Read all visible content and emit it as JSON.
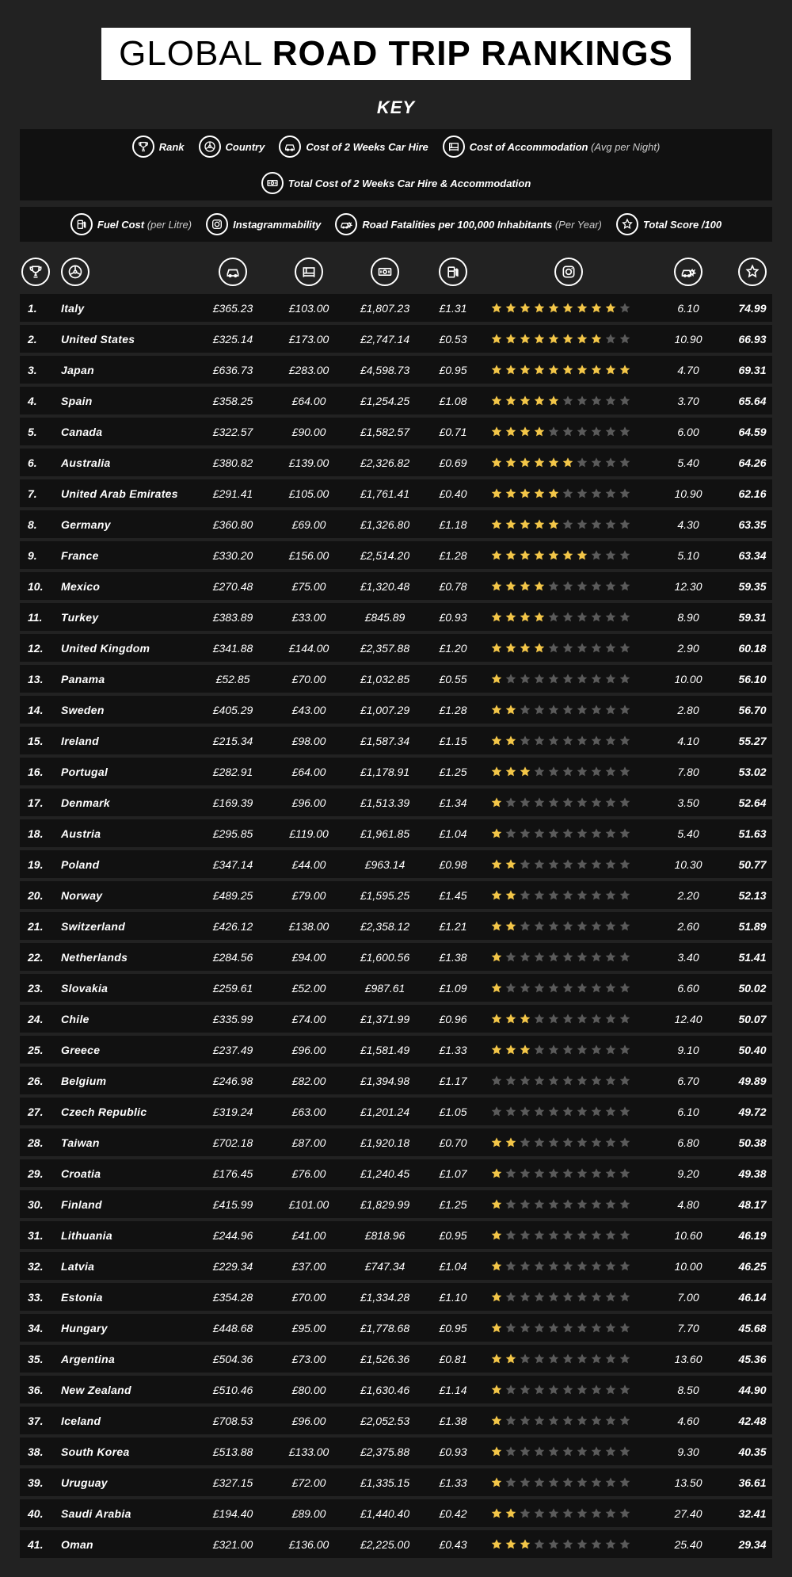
{
  "title": {
    "light": "GLOBAL ",
    "heavy": "ROAD TRIP RANKINGS"
  },
  "keyLabel": "KEY",
  "colors": {
    "gold": "#f3c648",
    "grey": "#5a5a5a",
    "rowBg": "#111111",
    "pageBg": "#222222"
  },
  "maxStars": 10,
  "legend": {
    "row1": [
      {
        "icon": "trophy",
        "label": "Rank",
        "sub": ""
      },
      {
        "icon": "wheel",
        "label": "Country",
        "sub": ""
      },
      {
        "icon": "car",
        "label": "Cost of 2 Weeks Car Hire",
        "sub": ""
      },
      {
        "icon": "bed",
        "label": "Cost of Accommodation",
        "sub": "(Avg per Night)"
      },
      {
        "icon": "money",
        "label": "Total Cost of 2 Weeks Car Hire & Accommodation",
        "sub": ""
      }
    ],
    "row2": [
      {
        "icon": "fuel",
        "label": "Fuel Cost",
        "sub": "(per Litre)"
      },
      {
        "icon": "insta",
        "label": "Instagrammability",
        "sub": ""
      },
      {
        "icon": "crash",
        "label": "Road Fatalities per 100,000 Inhabitants",
        "sub": "(Per Year)"
      },
      {
        "icon": "star",
        "label": "Total Score /100",
        "sub": ""
      }
    ]
  },
  "headers": [
    "trophy",
    "wheel",
    "car",
    "bed",
    "money",
    "fuel",
    "insta",
    "crash",
    "star"
  ],
  "rows": [
    {
      "rank": "1.",
      "country": "Italy",
      "hire": "£365.23",
      "accom": "£103.00",
      "total": "£1,807.23",
      "fuel": "£1.31",
      "stars": 9,
      "fatal": "6.10",
      "score": "74.99"
    },
    {
      "rank": "2.",
      "country": "United States",
      "hire": "£325.14",
      "accom": "£173.00",
      "total": "£2,747.14",
      "fuel": "£0.53",
      "stars": 8,
      "fatal": "10.90",
      "score": "66.93"
    },
    {
      "rank": "3.",
      "country": "Japan",
      "hire": "£636.73",
      "accom": "£283.00",
      "total": "£4,598.73",
      "fuel": "£0.95",
      "stars": 10,
      "fatal": "4.70",
      "score": "69.31"
    },
    {
      "rank": "4.",
      "country": "Spain",
      "hire": "£358.25",
      "accom": "£64.00",
      "total": "£1,254.25",
      "fuel": "£1.08",
      "stars": 5,
      "fatal": "3.70",
      "score": "65.64"
    },
    {
      "rank": "5.",
      "country": "Canada",
      "hire": "£322.57",
      "accom": "£90.00",
      "total": "£1,582.57",
      "fuel": "£0.71",
      "stars": 4,
      "fatal": "6.00",
      "score": "64.59"
    },
    {
      "rank": "6.",
      "country": "Australia",
      "hire": "£380.82",
      "accom": "£139.00",
      "total": "£2,326.82",
      "fuel": "£0.69",
      "stars": 6,
      "fatal": "5.40",
      "score": "64.26"
    },
    {
      "rank": "7.",
      "country": "United Arab Emirates",
      "hire": "£291.41",
      "accom": "£105.00",
      "total": "£1,761.41",
      "fuel": "£0.40",
      "stars": 5,
      "fatal": "10.90",
      "score": "62.16"
    },
    {
      "rank": "8.",
      "country": "Germany",
      "hire": "£360.80",
      "accom": "£69.00",
      "total": "£1,326.80",
      "fuel": "£1.18",
      "stars": 5,
      "fatal": "4.30",
      "score": "63.35"
    },
    {
      "rank": "9.",
      "country": "France",
      "hire": "£330.20",
      "accom": "£156.00",
      "total": "£2,514.20",
      "fuel": "£1.28",
      "stars": 7,
      "fatal": "5.10",
      "score": "63.34"
    },
    {
      "rank": "10.",
      "country": "Mexico",
      "hire": "£270.48",
      "accom": "£75.00",
      "total": "£1,320.48",
      "fuel": "£0.78",
      "stars": 4,
      "fatal": "12.30",
      "score": "59.35"
    },
    {
      "rank": "11.",
      "country": "Turkey",
      "hire": "£383.89",
      "accom": "£33.00",
      "total": "£845.89",
      "fuel": "£0.93",
      "stars": 4,
      "fatal": "8.90",
      "score": "59.31"
    },
    {
      "rank": "12.",
      "country": "United Kingdom",
      "hire": "£341.88",
      "accom": "£144.00",
      "total": "£2,357.88",
      "fuel": "£1.20",
      "stars": 4,
      "fatal": "2.90",
      "score": "60.18"
    },
    {
      "rank": "13.",
      "country": "Panama",
      "hire": "£52.85",
      "accom": "£70.00",
      "total": "£1,032.85",
      "fuel": "£0.55",
      "stars": 1,
      "fatal": "10.00",
      "score": "56.10"
    },
    {
      "rank": "14.",
      "country": "Sweden",
      "hire": "£405.29",
      "accom": "£43.00",
      "total": "£1,007.29",
      "fuel": "£1.28",
      "stars": 2,
      "fatal": "2.80",
      "score": "56.70"
    },
    {
      "rank": "15.",
      "country": "Ireland",
      "hire": "£215.34",
      "accom": "£98.00",
      "total": "£1,587.34",
      "fuel": "£1.15",
      "stars": 2,
      "fatal": "4.10",
      "score": "55.27"
    },
    {
      "rank": "16.",
      "country": "Portugal",
      "hire": "£282.91",
      "accom": "£64.00",
      "total": "£1,178.91",
      "fuel": "£1.25",
      "stars": 3,
      "fatal": "7.80",
      "score": "53.02"
    },
    {
      "rank": "17.",
      "country": "Denmark",
      "hire": "£169.39",
      "accom": "£96.00",
      "total": "£1,513.39",
      "fuel": "£1.34",
      "stars": 1,
      "fatal": "3.50",
      "score": "52.64"
    },
    {
      "rank": "18.",
      "country": "Austria",
      "hire": "£295.85",
      "accom": "£119.00",
      "total": "£1,961.85",
      "fuel": "£1.04",
      "stars": 1,
      "fatal": "5.40",
      "score": "51.63"
    },
    {
      "rank": "19.",
      "country": "Poland",
      "hire": "£347.14",
      "accom": "£44.00",
      "total": "£963.14",
      "fuel": "£0.98",
      "stars": 2,
      "fatal": "10.30",
      "score": "50.77"
    },
    {
      "rank": "20.",
      "country": "Norway",
      "hire": "£489.25",
      "accom": "£79.00",
      "total": "£1,595.25",
      "fuel": "£1.45",
      "stars": 2,
      "fatal": "2.20",
      "score": "52.13"
    },
    {
      "rank": "21.",
      "country": "Switzerland",
      "hire": "£426.12",
      "accom": "£138.00",
      "total": "£2,358.12",
      "fuel": "£1.21",
      "stars": 2,
      "fatal": "2.60",
      "score": "51.89"
    },
    {
      "rank": "22.",
      "country": "Netherlands",
      "hire": "£284.56",
      "accom": "£94.00",
      "total": "£1,600.56",
      "fuel": "£1.38",
      "stars": 1,
      "fatal": "3.40",
      "score": "51.41"
    },
    {
      "rank": "23.",
      "country": "Slovakia",
      "hire": "£259.61",
      "accom": "£52.00",
      "total": "£987.61",
      "fuel": "£1.09",
      "stars": 1,
      "fatal": "6.60",
      "score": "50.02"
    },
    {
      "rank": "24.",
      "country": "Chile",
      "hire": "£335.99",
      "accom": "£74.00",
      "total": "£1,371.99",
      "fuel": "£0.96",
      "stars": 3,
      "fatal": "12.40",
      "score": "50.07"
    },
    {
      "rank": "25.",
      "country": "Greece",
      "hire": "£237.49",
      "accom": "£96.00",
      "total": "£1,581.49",
      "fuel": "£1.33",
      "stars": 3,
      "fatal": "9.10",
      "score": "50.40"
    },
    {
      "rank": "26.",
      "country": "Belgium",
      "hire": "£246.98",
      "accom": "£82.00",
      "total": "£1,394.98",
      "fuel": "£1.17",
      "stars": 0,
      "fatal": "6.70",
      "score": "49.89"
    },
    {
      "rank": "27.",
      "country": "Czech Republic",
      "hire": "£319.24",
      "accom": "£63.00",
      "total": "£1,201.24",
      "fuel": "£1.05",
      "stars": 0,
      "fatal": "6.10",
      "score": "49.72"
    },
    {
      "rank": "28.",
      "country": "Taiwan",
      "hire": "£702.18",
      "accom": "£87.00",
      "total": "£1,920.18",
      "fuel": "£0.70",
      "stars": 2,
      "fatal": "6.80",
      "score": "50.38"
    },
    {
      "rank": "29.",
      "country": "Croatia",
      "hire": "£176.45",
      "accom": "£76.00",
      "total": "£1,240.45",
      "fuel": "£1.07",
      "stars": 1,
      "fatal": "9.20",
      "score": "49.38"
    },
    {
      "rank": "30.",
      "country": "Finland",
      "hire": "£415.99",
      "accom": "£101.00",
      "total": "£1,829.99",
      "fuel": "£1.25",
      "stars": 1,
      "fatal": "4.80",
      "score": "48.17"
    },
    {
      "rank": "31.",
      "country": "Lithuania",
      "hire": "£244.96",
      "accom": "£41.00",
      "total": "£818.96",
      "fuel": "£0.95",
      "stars": 1,
      "fatal": "10.60",
      "score": "46.19"
    },
    {
      "rank": "32.",
      "country": "Latvia",
      "hire": "£229.34",
      "accom": "£37.00",
      "total": "£747.34",
      "fuel": "£1.04",
      "stars": 1,
      "fatal": "10.00",
      "score": "46.25"
    },
    {
      "rank": "33.",
      "country": "Estonia",
      "hire": "£354.28",
      "accom": "£70.00",
      "total": "£1,334.28",
      "fuel": "£1.10",
      "stars": 1,
      "fatal": "7.00",
      "score": "46.14"
    },
    {
      "rank": "34.",
      "country": "Hungary",
      "hire": "£448.68",
      "accom": "£95.00",
      "total": "£1,778.68",
      "fuel": "£0.95",
      "stars": 1,
      "fatal": "7.70",
      "score": "45.68"
    },
    {
      "rank": "35.",
      "country": "Argentina",
      "hire": "£504.36",
      "accom": "£73.00",
      "total": "£1,526.36",
      "fuel": "£0.81",
      "stars": 2,
      "fatal": "13.60",
      "score": "45.36"
    },
    {
      "rank": "36.",
      "country": "New Zealand",
      "hire": "£510.46",
      "accom": "£80.00",
      "total": "£1,630.46",
      "fuel": "£1.14",
      "stars": 1,
      "fatal": "8.50",
      "score": "44.90"
    },
    {
      "rank": "37.",
      "country": "Iceland",
      "hire": "£708.53",
      "accom": "£96.00",
      "total": "£2,052.53",
      "fuel": "£1.38",
      "stars": 1,
      "fatal": "4.60",
      "score": "42.48"
    },
    {
      "rank": "38.",
      "country": "South Korea",
      "hire": "£513.88",
      "accom": "£133.00",
      "total": "£2,375.88",
      "fuel": "£0.93",
      "stars": 1,
      "fatal": "9.30",
      "score": "40.35"
    },
    {
      "rank": "39.",
      "country": "Uruguay",
      "hire": "£327.15",
      "accom": "£72.00",
      "total": "£1,335.15",
      "fuel": "£1.33",
      "stars": 1,
      "fatal": "13.50",
      "score": "36.61"
    },
    {
      "rank": "40.",
      "country": "Saudi Arabia",
      "hire": "£194.40",
      "accom": "£89.00",
      "total": "£1,440.40",
      "fuel": "£0.42",
      "stars": 2,
      "fatal": "27.40",
      "score": "32.41"
    },
    {
      "rank": "41.",
      "country": "Oman",
      "hire": "£321.00",
      "accom": "£136.00",
      "total": "£2,225.00",
      "fuel": "£0.43",
      "stars": 3,
      "fatal": "25.40",
      "score": "29.34"
    }
  ]
}
